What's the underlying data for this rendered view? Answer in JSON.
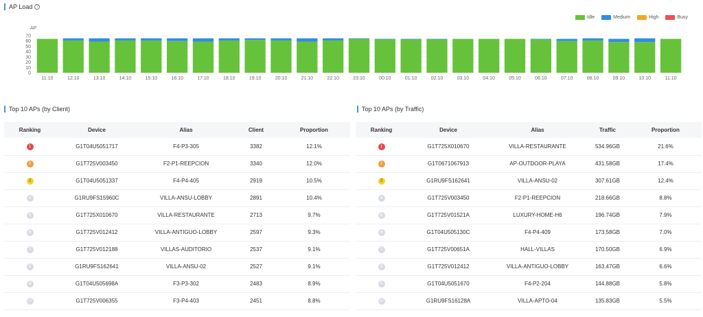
{
  "ap_load": {
    "title": "AP Load",
    "help_icon": "question-circle-icon",
    "legend": [
      {
        "label": "Idle",
        "color": "#66c23a"
      },
      {
        "label": "Medium",
        "color": "#2f8de4"
      },
      {
        "label": "High",
        "color": "#f5a623"
      },
      {
        "label": "Busy",
        "color": "#f05050"
      }
    ]
  },
  "chart_data": {
    "type": "bar",
    "stacked": true,
    "ylabel": "AP",
    "ylim": [
      0,
      70
    ],
    "yticks": [
      0,
      10,
      20,
      30,
      40,
      50,
      60,
      70
    ],
    "grid": true,
    "legend_position": "top-right",
    "categories": [
      "11:10",
      "12:10",
      "13:10",
      "14:10",
      "15:10",
      "16:10",
      "17:10",
      "18:10",
      "19:10",
      "20:10",
      "21:10",
      "22:10",
      "23:10",
      "00:10",
      "01:10",
      "02:10",
      "03:10",
      "04:10",
      "05:10",
      "06:10",
      "07:10",
      "08:10",
      "09:10",
      "10:10",
      "11:10"
    ],
    "series": [
      {
        "name": "Idle",
        "color": "#66c23a",
        "values": [
          64,
          61,
          59,
          61,
          61,
          60,
          59,
          61,
          62,
          61,
          59,
          61,
          64,
          63,
          63,
          63,
          64,
          64,
          64,
          63,
          60,
          61,
          58,
          58,
          64
        ]
      },
      {
        "name": "Medium",
        "color": "#2f8de4",
        "values": [
          0,
          4,
          6,
          4,
          4,
          5,
          6,
          4,
          3,
          4,
          6,
          4,
          1,
          1,
          1,
          1,
          0,
          0,
          0,
          1,
          4,
          4,
          6,
          7,
          0
        ]
      },
      {
        "name": "High",
        "color": "#f5a623",
        "values": [
          0,
          0,
          0,
          0,
          0,
          0,
          0,
          0,
          0,
          0,
          0,
          0,
          0,
          0,
          0,
          0,
          0,
          0,
          0,
          0,
          0,
          0,
          0,
          0,
          0
        ]
      },
      {
        "name": "Busy",
        "color": "#f05050",
        "values": [
          0,
          0,
          0,
          0,
          0,
          0,
          0,
          0,
          0,
          0,
          0,
          0,
          0,
          0,
          0,
          0,
          0,
          0,
          0,
          0,
          0,
          0,
          0,
          0,
          0
        ]
      }
    ]
  },
  "top_client": {
    "title": "Top 10 APs (by Client)",
    "headers": [
      "Ranking",
      "Device",
      "Alias",
      "Client",
      "Proportion"
    ],
    "rows": [
      {
        "rank": "1",
        "device": "G1T04U5051717",
        "alias": "F4-P3-305",
        "value": "3382",
        "proportion": "12.1%"
      },
      {
        "rank": "2",
        "device": "G1T725V003450",
        "alias": "F2-P1-REEPCION",
        "value": "3340",
        "proportion": "12.0%"
      },
      {
        "rank": "3",
        "device": "G1T04U5051337",
        "alias": "F4-P4-405",
        "value": "2919",
        "proportion": "10.5%"
      },
      {
        "rank": "4",
        "device": "G1RU9FS15960C",
        "alias": "VILLA-ANSU-LOBBY",
        "value": "2891",
        "proportion": "10.4%"
      },
      {
        "rank": "5",
        "device": "G1T725X010670",
        "alias": "VILLA-RESTAURANTE",
        "value": "2713",
        "proportion": "9.7%"
      },
      {
        "rank": "6",
        "device": "G1T725V012412",
        "alias": "VILLA-ANTIGUO-LOBBY",
        "value": "2597",
        "proportion": "9.3%"
      },
      {
        "rank": "7",
        "device": "G1T725V012188",
        "alias": "VILLAS-AUDITORIO",
        "value": "2537",
        "proportion": "9.1%"
      },
      {
        "rank": "8",
        "device": "G1RU9FS162641",
        "alias": "VILLA-ANSU-02",
        "value": "2527",
        "proportion": "9.1%"
      },
      {
        "rank": "9",
        "device": "G1T04U505698A",
        "alias": "F3-P3-302",
        "value": "2483",
        "proportion": "8.9%"
      },
      {
        "rank": "10",
        "device": "G1T725V006355",
        "alias": "F3-P4-403",
        "value": "2451",
        "proportion": "8.8%"
      }
    ]
  },
  "top_traffic": {
    "title": "Top 10 APs (by Traffic)",
    "headers": [
      "Ranking",
      "Device",
      "Alias",
      "Traffic",
      "Proportion"
    ],
    "rows": [
      {
        "rank": "1",
        "device": "G1T725X010670",
        "alias": "VILLA-RESTAURANTE",
        "value": "534.96GB",
        "proportion": "21.6%"
      },
      {
        "rank": "2",
        "device": "G1T0671067913",
        "alias": "AP-OUTDOOR-PLAYA",
        "value": "431.58GB",
        "proportion": "17.4%"
      },
      {
        "rank": "3",
        "device": "G1RU9FS162641",
        "alias": "VILLA-ANSU-02",
        "value": "307.61GB",
        "proportion": "12.4%"
      },
      {
        "rank": "4",
        "device": "G1T725V003450",
        "alias": "F2-P1-REEPCION",
        "value": "218.66GB",
        "proportion": "8.8%"
      },
      {
        "rank": "5",
        "device": "G1T725V01521A",
        "alias": "LUXURY-HOME-H6",
        "value": "196.74GB",
        "proportion": "7.9%"
      },
      {
        "rank": "6",
        "device": "G1T04U505130C",
        "alias": "F4-P4-409",
        "value": "173.58GB",
        "proportion": "7.0%"
      },
      {
        "rank": "7",
        "device": "G1T725V00651A",
        "alias": "HALL-VILLAS",
        "value": "170.50GB",
        "proportion": "6.9%"
      },
      {
        "rank": "8",
        "device": "G1T725V012412",
        "alias": "VILLA-ANTIGUO-LOBBY",
        "value": "163.47GB",
        "proportion": "6.6%"
      },
      {
        "rank": "9",
        "device": "G1T04U5051670",
        "alias": "F4-P2-204",
        "value": "144.88GB",
        "proportion": "5.8%"
      },
      {
        "rank": "10",
        "device": "G1RU9FS16128A",
        "alias": "VILLA-APTO-04",
        "value": "135.83GB",
        "proportion": "5.5%"
      }
    ]
  }
}
